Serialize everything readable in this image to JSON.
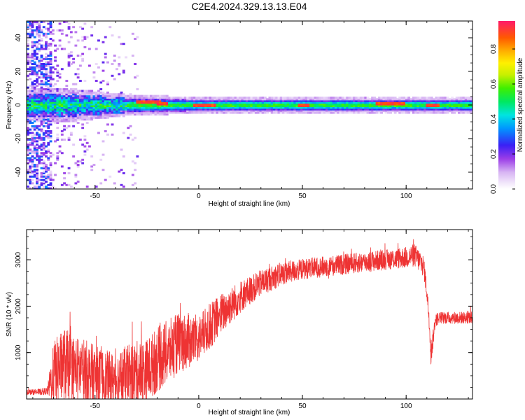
{
  "title": "C2E4.2024.329.13.13.E04",
  "chart_data": [
    {
      "type": "heatmap",
      "xlabel": "Height of straight line (km)",
      "ylabel": "Frequency (Hz)",
      "xlim": [
        -83,
        132
      ],
      "ylim": [
        -50,
        50
      ],
      "x_ticks": [
        "-50",
        "0",
        "50",
        "100"
      ],
      "y_ticks": [
        "-40",
        "-20",
        "0",
        "20",
        "40"
      ],
      "colorbar": {
        "label": "Normalized spectral amplitude",
        "range": [
          0,
          0.96
        ],
        "ticks": [
          "0.0",
          "0.2",
          "0.4",
          "0.6",
          "0.8"
        ]
      },
      "band": {
        "center_hz": [
          [
            -83,
            0
          ],
          [
            132,
            0
          ]
        ],
        "halfwidth_hz": [
          [
            -83,
            6
          ],
          [
            -60,
            6
          ],
          [
            -35,
            4
          ],
          [
            0,
            3
          ],
          [
            100,
            3
          ],
          [
            132,
            3
          ]
        ],
        "strong_spots": [
          [
            -28,
            2
          ],
          [
            -22,
            2
          ],
          [
            -18,
            1
          ],
          [
            0,
            0
          ],
          [
            5,
            0
          ],
          [
            50,
            0
          ],
          [
            88,
            1
          ],
          [
            92,
            1
          ],
          [
            96,
            1
          ],
          [
            112,
            0
          ]
        ]
      }
    },
    {
      "type": "line",
      "xlabel": "Height of straight line (km)",
      "ylabel": "SNR (10 * v/v)",
      "xlim": [
        -83,
        132
      ],
      "ylim": [
        0,
        3650
      ],
      "x_ticks": [
        "-50",
        "0",
        "50",
        "100"
      ],
      "y_ticks": [
        "1000",
        "2000",
        "3000"
      ],
      "color": "#ee3333",
      "series": [
        {
          "x": [
            -83,
            -78,
            -73,
            -70,
            -65,
            -60,
            -55,
            -50,
            -45,
            -40,
            -35,
            -30,
            -25,
            -20,
            -15,
            -10,
            -5,
            0,
            5,
            10,
            15,
            20,
            25,
            30,
            40,
            50,
            60,
            70,
            80,
            90,
            95,
            100,
            104,
            106,
            108,
            109,
            110,
            111,
            112,
            113,
            114,
            116,
            120,
            125,
            130,
            132
          ],
          "y": [
            150,
            150,
            170,
            550,
            750,
            650,
            600,
            500,
            450,
            400,
            500,
            550,
            600,
            850,
            1000,
            1200,
            1250,
            1300,
            1550,
            1800,
            2000,
            2200,
            2350,
            2500,
            2700,
            2800,
            2850,
            2900,
            2950,
            3000,
            3020,
            3050,
            3100,
            3000,
            2900,
            2700,
            2300,
            1800,
            1000,
            1300,
            1700,
            1750,
            1750,
            1750,
            1750,
            1750
          ],
          "noise": [
            60,
            60,
            80,
            700,
            800,
            700,
            700,
            650,
            600,
            600,
            650,
            700,
            700,
            700,
            700,
            650,
            600,
            500,
            500,
            450,
            400,
            350,
            300,
            280,
            250,
            220,
            220,
            220,
            220,
            220,
            220,
            230,
            250,
            250,
            250,
            200,
            200,
            200,
            300,
            200,
            150,
            130,
            130,
            130,
            130,
            130
          ]
        }
      ]
    }
  ]
}
